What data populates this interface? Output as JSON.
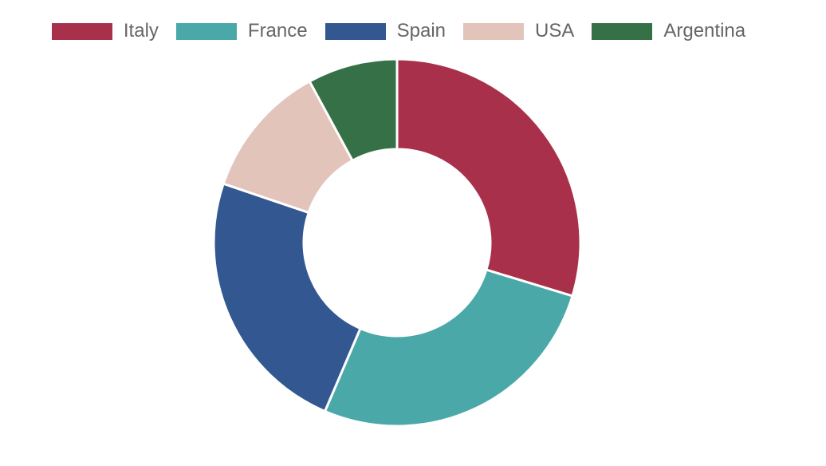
{
  "chart_data": {
    "type": "pie",
    "variant": "doughnut",
    "title": "",
    "legend_position": "top",
    "categories": [
      "Italy",
      "France",
      "Spain",
      "USA",
      "Argentina"
    ],
    "values": [
      30,
      27,
      24,
      12,
      8
    ],
    "colors": [
      "#a8304a",
      "#4aa8a8",
      "#335791",
      "#e2c4bb",
      "#367047"
    ],
    "border_color": "#ffffff"
  }
}
